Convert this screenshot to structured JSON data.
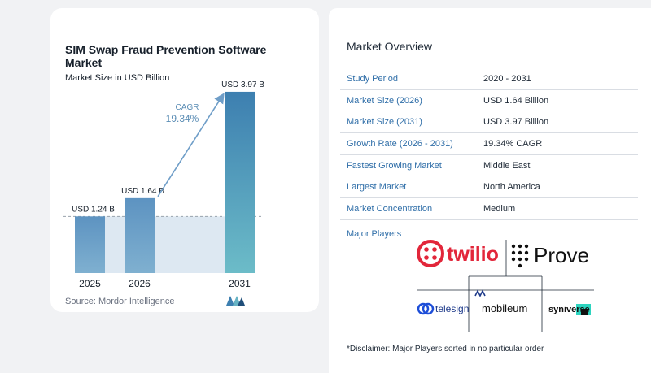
{
  "chart_data": {
    "type": "bar",
    "title": "SIM Swap Fraud Prevention Software Market",
    "subtitle": "Market Size in USD Billion",
    "categories": [
      "2025",
      "2026",
      "2031"
    ],
    "values": [
      1.24,
      1.64,
      3.97
    ],
    "value_labels": [
      "USD 1.24 B",
      "USD 1.64 B",
      "USD 3.97 B"
    ],
    "xlabel": "",
    "ylabel": "",
    "ylim": [
      0,
      4.2
    ],
    "grid": false,
    "annotation": {
      "label": "CAGR",
      "value": "19.34%"
    },
    "colors": {
      "bar_light": "#6f9ec8",
      "bar_dark": "#3d7fb0",
      "bar_teal": "#67b3c4",
      "band": "#dde8f2",
      "arrow": "#6f9ec8"
    }
  },
  "source": "Source:  Mordor Intelligence",
  "overview": {
    "title": "Market Overview",
    "rows": [
      {
        "key": "Study Period",
        "value": "2020 - 2031"
      },
      {
        "key": "Market Size (2026)",
        "value": "USD 1.64 Billion"
      },
      {
        "key": "Market Size (2031)",
        "value": "USD 3.97 Billion"
      },
      {
        "key": "Growth Rate (2026 - 2031)",
        "value": "19.34% CAGR"
      },
      {
        "key": "Fastest Growing Market",
        "value": "Middle East"
      },
      {
        "key": "Largest Market",
        "value": "North America"
      },
      {
        "key": "Market Concentration",
        "value": "Medium"
      }
    ],
    "players_label": "Major Players",
    "players": [
      "twilio",
      "Prove",
      "telesign",
      "mobileum",
      "syniverse"
    ],
    "disclaimer": "*Disclaimer: Major Players sorted in no particular order"
  }
}
